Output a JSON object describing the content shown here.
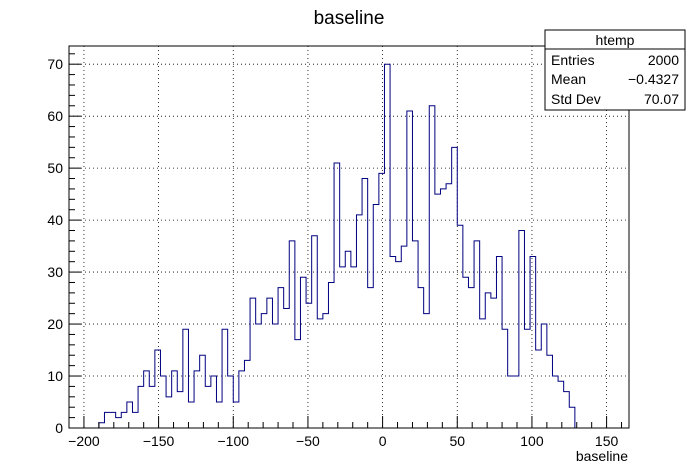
{
  "chart_data": {
    "type": "bar",
    "title": "baseline",
    "xlabel": "baseline",
    "ylabel": "",
    "xlim": [
      -210,
      165
    ],
    "ylim": [
      0,
      73.5
    ],
    "grid": true,
    "legend_position": "top-right",
    "x_ticks": [
      -200,
      -150,
      -100,
      -50,
      0,
      50,
      100,
      150
    ],
    "x_tick_labels": [
      "−200",
      "−150",
      "−100",
      "−50",
      "0",
      "50",
      "100",
      "150"
    ],
    "y_ticks": [
      0,
      10,
      20,
      30,
      40,
      50,
      60,
      70
    ],
    "y_tick_labels": [
      "0",
      "10",
      "20",
      "30",
      "40",
      "50",
      "60",
      "70"
    ],
    "bin_edges_start": -190,
    "bin_width": 3.75,
    "values": [
      1,
      3,
      3,
      2,
      3,
      5,
      3,
      8,
      11,
      8,
      15,
      10,
      6,
      11,
      7,
      19,
      5,
      11,
      14,
      8,
      10,
      5,
      19,
      10,
      5,
      11,
      13,
      25,
      20,
      22,
      25,
      20,
      27,
      23,
      36,
      17,
      29,
      24,
      37,
      21,
      22,
      28,
      51,
      31,
      34,
      31,
      41,
      48,
      27,
      43,
      49,
      70,
      33,
      32,
      35,
      61,
      36,
      27,
      22,
      62,
      45,
      46,
      47,
      54,
      39,
      29,
      27,
      36,
      21,
      26,
      25,
      33,
      19,
      10,
      10,
      38,
      19,
      33,
      15,
      20,
      14,
      10,
      9,
      7,
      4,
      0
    ],
    "stats_box": {
      "name": "htemp",
      "rows": [
        {
          "label": "Entries",
          "value": "2000"
        },
        {
          "label": "Mean",
          "value": "−0.4327"
        },
        {
          "label": "Std Dev",
          "value": "70.07"
        }
      ]
    },
    "colors": {
      "line": "#000080",
      "frame": "#000000",
      "grid": "#000000",
      "background": "#ffffff"
    }
  }
}
